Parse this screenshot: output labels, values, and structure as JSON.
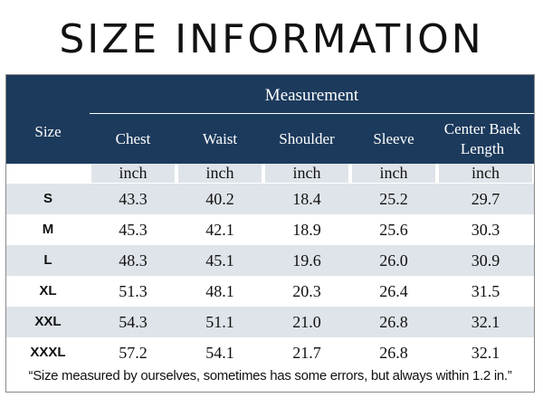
{
  "title": "SIZE INFORMATION",
  "table": {
    "size_header": "Size",
    "group_header": "Measurement",
    "columns": [
      "Chest",
      "Waist",
      "Shoulder",
      "Sleeve",
      "Center Baek Length"
    ],
    "units": [
      "inch",
      "inch",
      "inch",
      "inch",
      "inch"
    ],
    "rows": [
      {
        "size": "S",
        "values": [
          "43.3",
          "40.2",
          "18.4",
          "25.2",
          "29.7"
        ]
      },
      {
        "size": "M",
        "values": [
          "45.3",
          "42.1",
          "18.9",
          "25.6",
          "30.3"
        ]
      },
      {
        "size": "L",
        "values": [
          "48.3",
          "45.1",
          "19.6",
          "26.0",
          "30.9"
        ]
      },
      {
        "size": "XL",
        "values": [
          "51.3",
          "48.1",
          "20.3",
          "26.4",
          "31.5"
        ]
      },
      {
        "size": "XXL",
        "values": [
          "54.3",
          "51.1",
          "21.0",
          "26.8",
          "32.1"
        ]
      },
      {
        "size": "XXXL",
        "values": [
          "57.2",
          "54.1",
          "21.7",
          "26.8",
          "32.1"
        ]
      }
    ]
  },
  "note": "“Size measured by ourselves, sometimes has some errors, but always within 1.2 in.”",
  "colors": {
    "header_bg": "#1c3a5c",
    "row_alt_bg": "#dfe4ea"
  }
}
